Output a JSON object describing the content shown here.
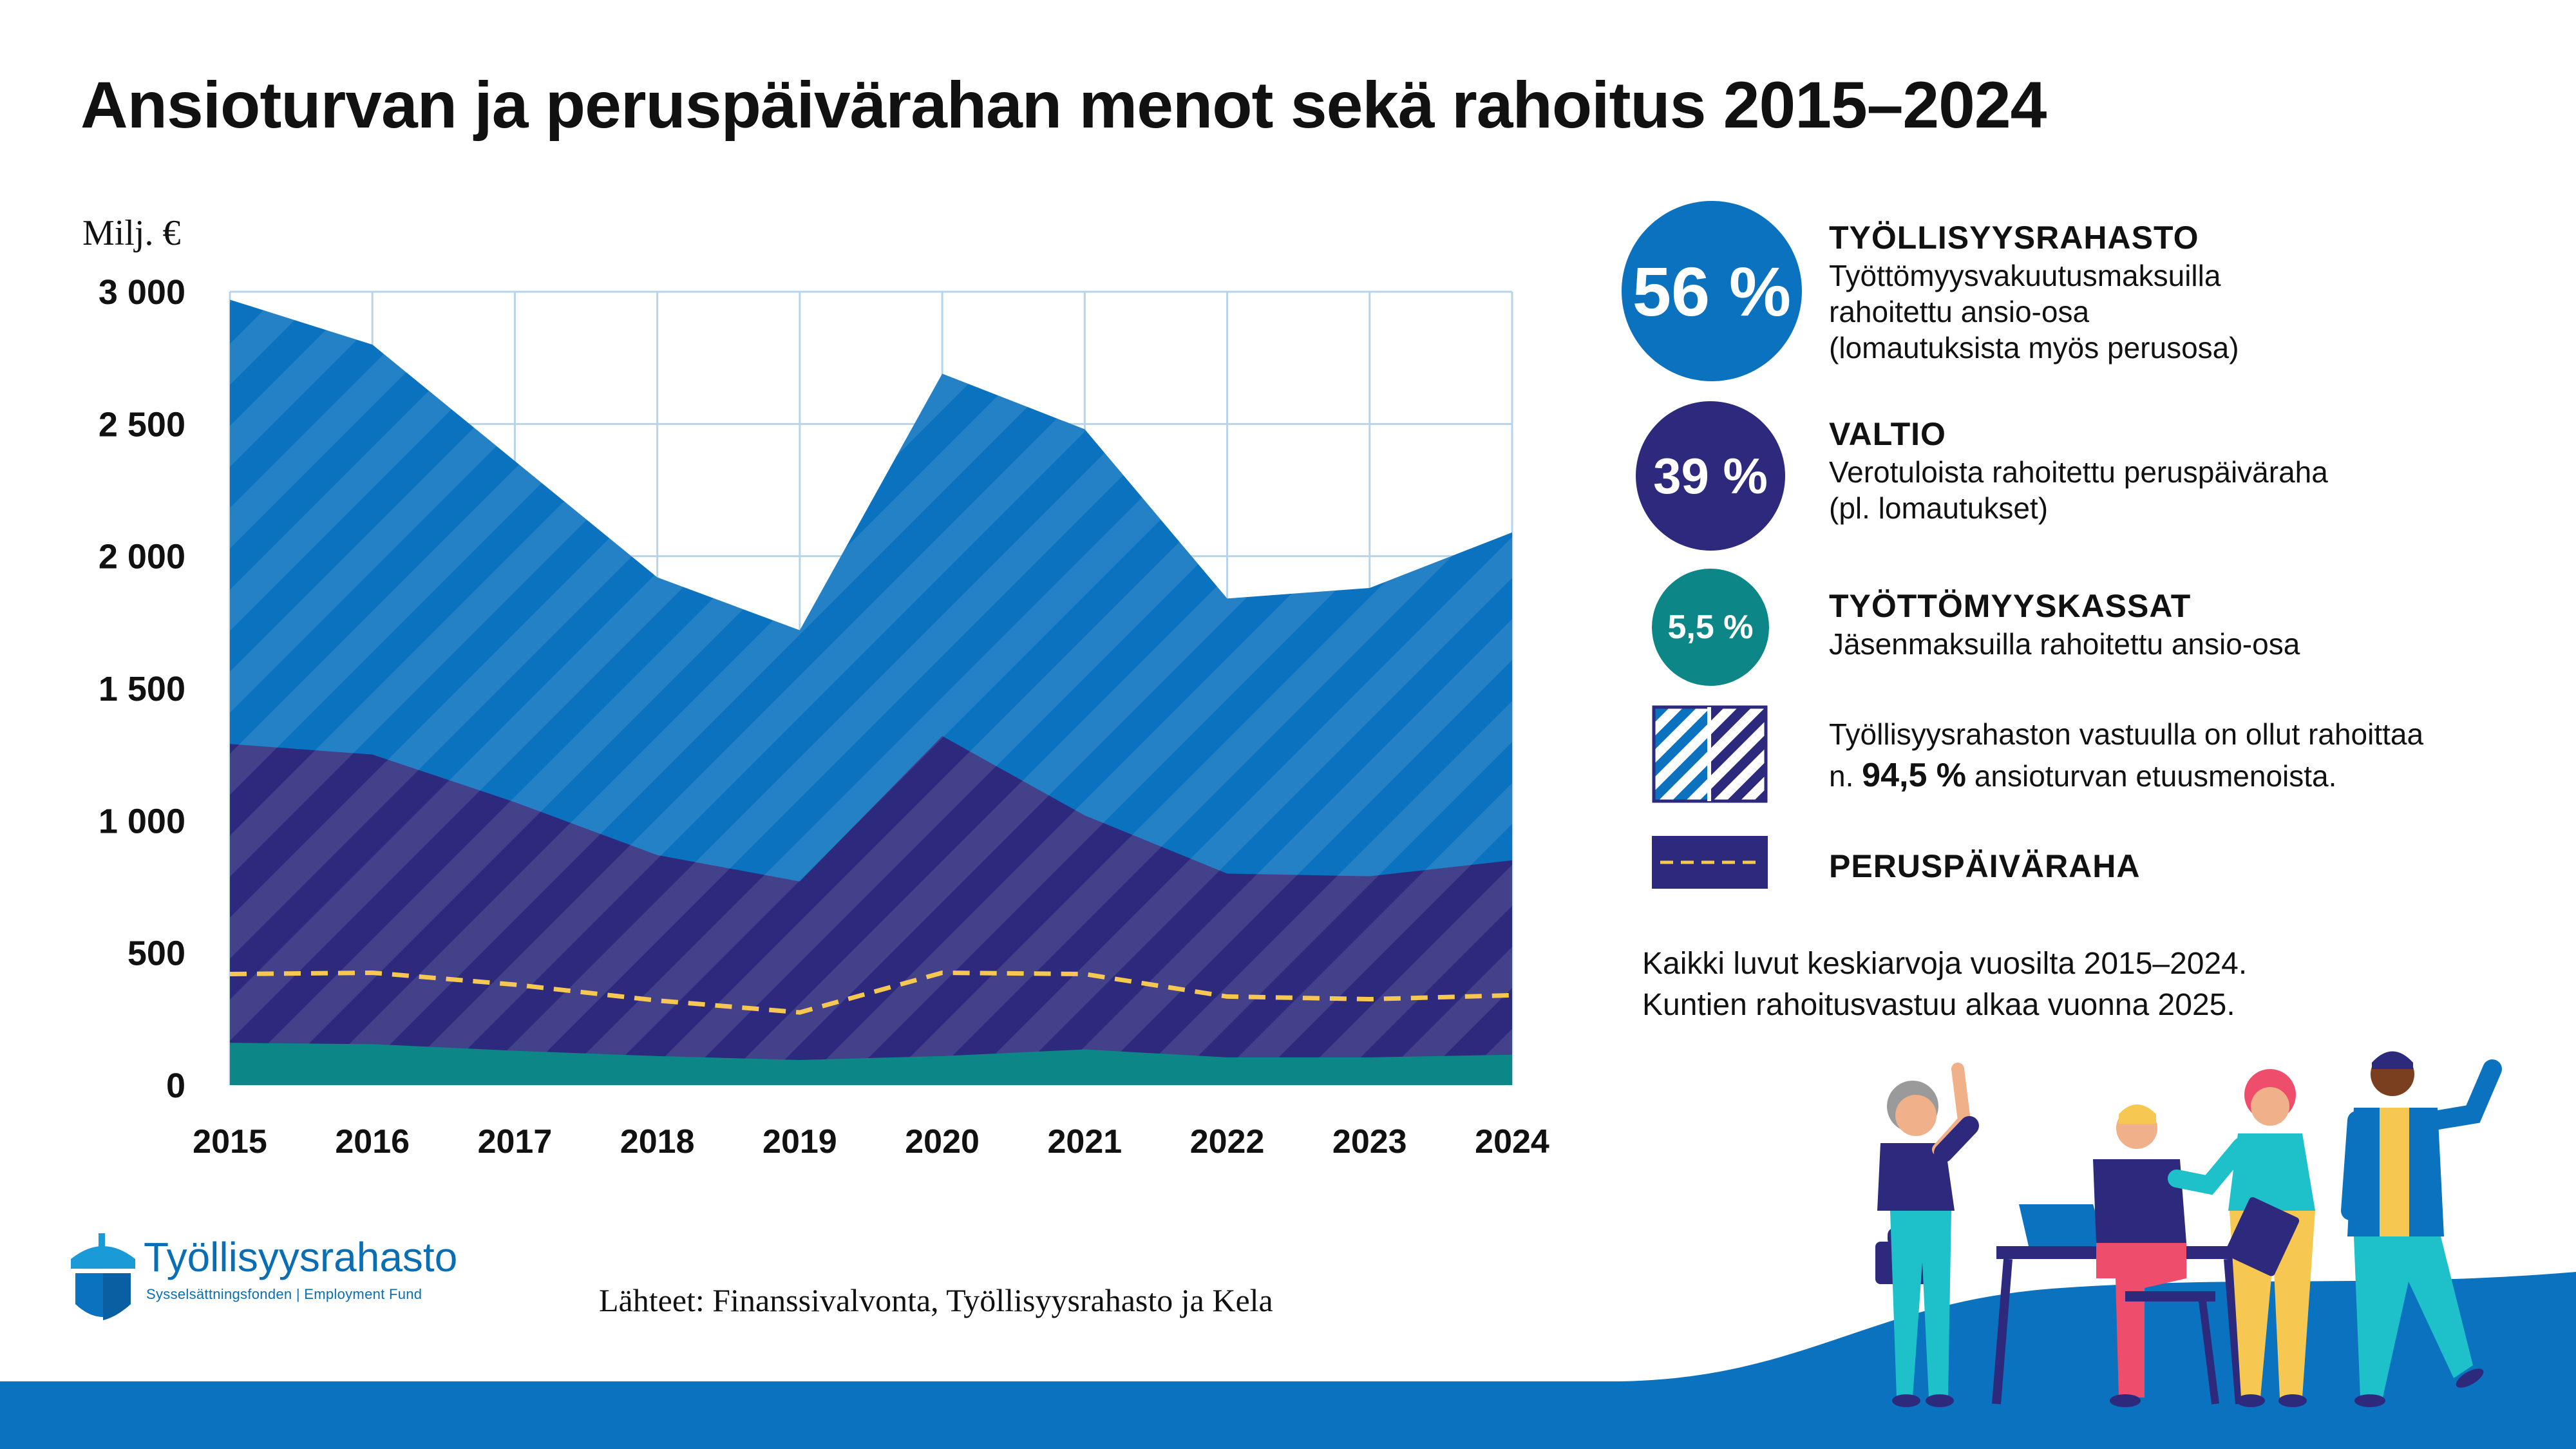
{
  "title": "Ansioturvan ja peruspäivärahan menot sekä rahoitus 2015–2024",
  "chart_data": {
    "type": "area",
    "ylabel": "Milj. €",
    "ylim": [
      0,
      3000
    ],
    "yticks": [
      0,
      500,
      1000,
      1500,
      2000,
      2500,
      3000
    ],
    "ytick_labels": [
      "0",
      "500",
      "1 000",
      "1 500",
      "2 000",
      "2 500",
      "3 000"
    ],
    "x": [
      "2015",
      "2016",
      "2017",
      "2018",
      "2019",
      "2020",
      "2021",
      "2022",
      "2023",
      "2024"
    ],
    "grid": true,
    "series": [
      {
        "name": "TYÖLLISYYSRAHASTO",
        "values": [
          2970,
          2800,
          2360,
          1920,
          1720,
          2690,
          2480,
          1840,
          1880,
          2090
        ],
        "color": "#0a72bf"
      },
      {
        "name": "VALTIO",
        "values": [
          1290,
          1250,
          1070,
          870,
          770,
          1320,
          1020,
          800,
          790,
          850
        ],
        "color": "#2d2a7d"
      },
      {
        "name": "TYÖTTÖMYYSKASSAT",
        "values": [
          160,
          155,
          130,
          110,
          95,
          110,
          135,
          105,
          105,
          115
        ],
        "color": "#0d8688"
      },
      {
        "name": "PERUSPÄIVÄRAHA",
        "values": [
          420,
          425,
          380,
          320,
          275,
          425,
          420,
          335,
          325,
          340
        ],
        "color": "#f6c851"
      }
    ]
  },
  "legend": {
    "items": [
      {
        "pct": "56 %",
        "title": "TYÖLLISYYSRAHASTO",
        "lines": [
          "Työttömyysvakuutusmaksuilla",
          "rahoitettu ansio-osa",
          "(lomautuksista myös perusosa)"
        ],
        "color": "#0a72bf"
      },
      {
        "pct": "39 %",
        "title": "VALTIO",
        "lines": [
          "Verotuloista rahoitettu peruspäiväraha",
          "(pl. lomautukset)"
        ],
        "color": "#2d2a7d"
      },
      {
        "pct": "5,5 %",
        "title": "TYÖTTÖMYYSKASSAT",
        "lines": [
          "Jäsenmaksuilla rahoitettu ansio-osa"
        ],
        "color": "#0d8688"
      }
    ],
    "striped_text_1": "Työllisyysrahaston vastuulla on ollut rahoittaa",
    "striped_text_2_prefix": "n. ",
    "striped_text_2_bold": "94,5 %",
    "striped_text_2_suffix": " ansioturvan etuusmenoista.",
    "peruspaivaraha_label": "PERUSPÄIVÄRAHA"
  },
  "notes": [
    "Kaikki luvut keskiarvoja vuosilta 2015–2024.",
    "Kuntien rahoitusvastuu alkaa vuonna 2025."
  ],
  "sources": "Lähteet: Finanssivalvonta, Työllisyysrahasto ja Kela",
  "logo": {
    "name": "Työllisyysrahasto",
    "subtitle": "Sysselsättningsfonden | Employment Fund"
  }
}
